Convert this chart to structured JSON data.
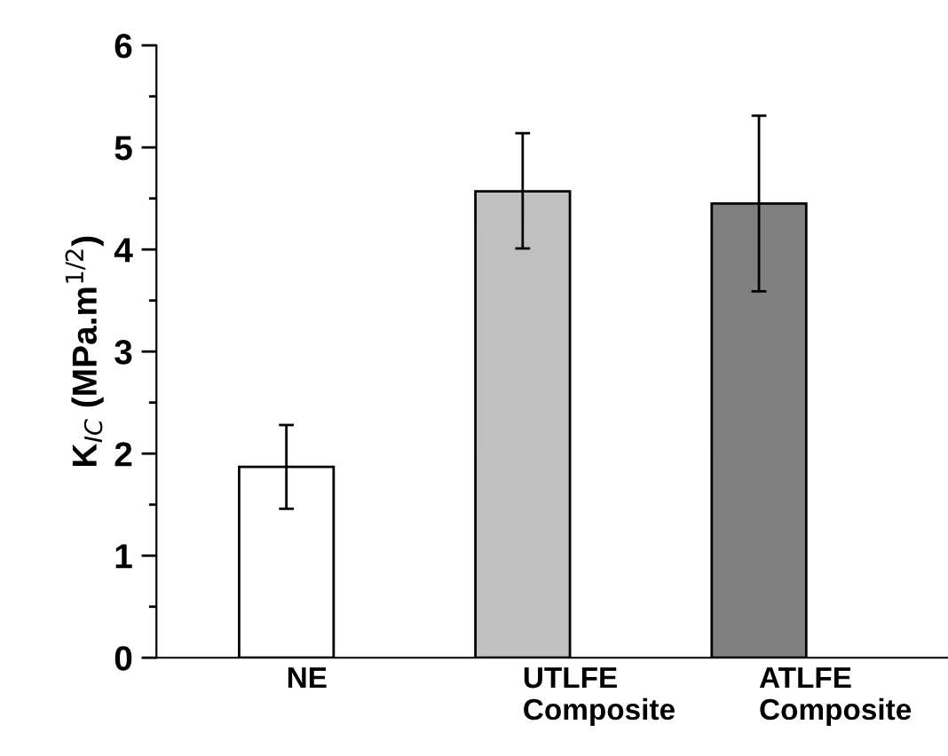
{
  "chart_data": {
    "type": "bar",
    "ylabel": "K$_{IC}$ (MPa.m$^{1/2}$)",
    "categories": [
      "NE",
      "UTLFE\nComposite",
      "ATLFE\nComposite"
    ],
    "values": [
      1.87,
      4.57,
      4.45
    ],
    "colors": [
      "#ffffff",
      "#c0c0c0",
      "#808080"
    ],
    "errors": [
      [
        1.46,
        2.28
      ],
      [
        4.01,
        5.14
      ],
      [
        3.59,
        5.31
      ]
    ],
    "ylim": [
      0,
      6
    ],
    "yticks": [
      0,
      1,
      2,
      3,
      4,
      5,
      6
    ],
    "grid": false,
    "legend": false
  }
}
